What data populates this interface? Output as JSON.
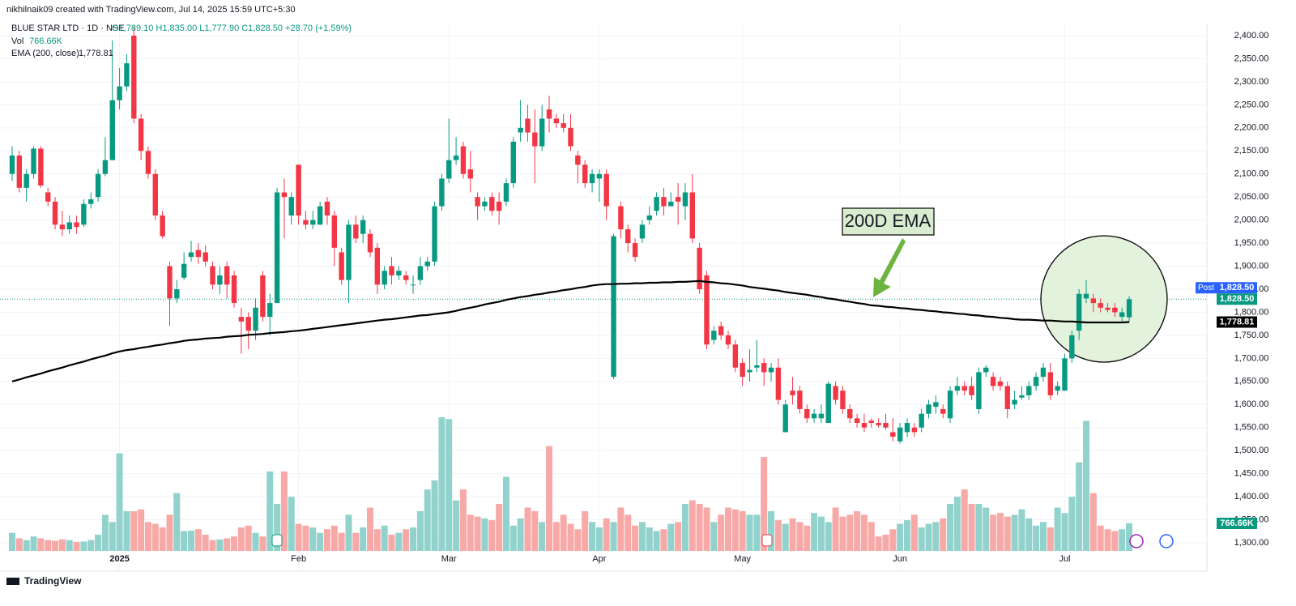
{
  "chart_data": {
    "type": "candlestick",
    "watermark": "nikhilnaik09 created with TradingView.com, Jul 14, 2025 15:59 UTC+5:30",
    "symbol": "BLUE STAR LTD · 1D · NSE",
    "ohlc_text": "O1,789.10 H1,835.00 L1,777.90 C1,828.50 +28.70 (+1.59%)",
    "vol_title": "Vol",
    "vol_value": "766.66K",
    "ema_title": "EMA (200, close)",
    "ema_value": "1,778.81",
    "annotation": "200D EMA",
    "footer": "TradingView",
    "ylim": [
      1300,
      2400
    ],
    "yticks": [
      {
        "value": 1300,
        "label": "1,300.00"
      },
      {
        "value": 1350,
        "label": "1,350.00"
      },
      {
        "value": 1400,
        "label": "1,400.00"
      },
      {
        "value": 1450,
        "label": "1,450.00"
      },
      {
        "value": 1500,
        "label": "1,500.00"
      },
      {
        "value": 1550,
        "label": "1,550.00"
      },
      {
        "value": 1600,
        "label": "1,600.00"
      },
      {
        "value": 1650,
        "label": "1,650.00"
      },
      {
        "value": 1700,
        "label": "1,700.00"
      },
      {
        "value": 1750,
        "label": "1,750.00"
      },
      {
        "value": 1800,
        "label": "1,800.00"
      },
      {
        "value": 1850,
        "label": "1,850.00"
      },
      {
        "value": 1900,
        "label": "1,900.00"
      },
      {
        "value": 1950,
        "label": "1,950.00"
      },
      {
        "value": 2000,
        "label": "2,000.00"
      },
      {
        "value": 2050,
        "label": "2,050.00"
      },
      {
        "value": 2100,
        "label": "2,100.00"
      },
      {
        "value": 2150,
        "label": "2,150.00"
      },
      {
        "value": 2200,
        "label": "2,200.00"
      },
      {
        "value": 2250,
        "label": "2,250.00"
      },
      {
        "value": 2300,
        "label": "2,300.00"
      },
      {
        "value": 2350,
        "label": "2,350.00"
      },
      {
        "value": 2400,
        "label": "2,400.00"
      }
    ],
    "xticks": [
      {
        "value": 15,
        "label": "2025"
      },
      {
        "value": 40,
        "label": "Feb"
      },
      {
        "value": 61,
        "label": "Mar"
      },
      {
        "value": 82,
        "label": "Apr"
      },
      {
        "value": 102,
        "label": "May"
      },
      {
        "value": 124,
        "label": "Jun"
      },
      {
        "value": 147,
        "label": "Jul"
      }
    ],
    "price_labels": [
      {
        "value": 1828.5,
        "label": "1,828.50",
        "tag": "Post",
        "color": "#2962ff"
      },
      {
        "value": 1828.5,
        "label": "1,828.50",
        "color": "#089981"
      },
      {
        "value": 1778.81,
        "label": "1,778.81",
        "color": "#000000"
      }
    ],
    "volume_label": "766.66K",
    "up_color": "#089981",
    "down_color": "#f23645",
    "up_volume_color": "#92d2cc",
    "down_volume_color": "#f7a9a7",
    "ema_color": "#000000",
    "open": [
      2100,
      2140,
      2070,
      2100,
      2155,
      2060,
      2040,
      1990,
      1980,
      1995,
      1990,
      2035,
      2050,
      2100,
      2130,
      2260,
      2290,
      2400,
      2220,
      2150,
      2100,
      2010,
      1900,
      1830,
      1875,
      1920,
      1935,
      1930,
      1900,
      1860,
      1900,
      1880,
      1790,
      1790,
      1760,
      1880,
      1790,
      1820,
      2060,
      2010,
      2120,
      2000,
      1990,
      1990,
      2040,
      2010,
      1930,
      1870,
      1990,
      1970,
      1970,
      1940,
      1860,
      1900,
      1880,
      1880,
      1860,
      1870,
      1900,
      1910,
      2030,
      2090,
      2130,
      2160,
      2110,
      2050,
      2030,
      2050,
      2040,
      2040,
      2080,
      2190,
      2220,
      2190,
      2160,
      2240,
      2220,
      2210,
      2200,
      2140,
      2120,
      2080,
      2090,
      2100,
      1660,
      2030,
      1980,
      1950,
      1960,
      2000,
      2020,
      2050,
      2030,
      2050,
      2030,
      2060,
      1940,
      1880,
      1740,
      1770,
      1750,
      1730,
      1690,
      1670,
      1680,
      1690,
      1670,
      1680,
      1540,
      1630,
      1630,
      1590,
      1570,
      1570,
      1560,
      1640,
      1630,
      1590,
      1570,
      1560,
      1565,
      1560,
      1560,
      1540,
      1520,
      1540,
      1550,
      1550,
      1580,
      1595,
      1590,
      1570,
      1630,
      1640,
      1640,
      1590,
      1670,
      1660,
      1650,
      1640,
      1600,
      1615,
      1620,
      1640,
      1660,
      1670,
      1630,
      1630,
      1700,
      1760,
      1830,
      1830,
      1820,
      1810,
      1810,
      1790,
      1789.1
    ],
    "high": [
      2160,
      2150,
      2110,
      2160,
      2160,
      2070,
      2050,
      2020,
      2010,
      2010,
      2045,
      2060,
      2110,
      2180,
      2390,
      2330,
      2360,
      2420,
      2230,
      2160,
      2110,
      2020,
      1910,
      1870,
      1930,
      1955,
      1950,
      1945,
      1910,
      1900,
      1910,
      1890,
      1810,
      1800,
      1830,
      1890,
      1840,
      2070,
      2090,
      2060,
      2120,
      2020,
      2020,
      2040,
      2050,
      2020,
      1940,
      2000,
      2010,
      2010,
      1980,
      1950,
      1900,
      1920,
      1900,
      1890,
      1880,
      1920,
      1920,
      2040,
      2100,
      2220,
      2180,
      2170,
      2150,
      2060,
      2050,
      2060,
      2060,
      2090,
      2180,
      2260,
      2250,
      2240,
      2250,
      2270,
      2230,
      2230,
      2230,
      2150,
      2130,
      2110,
      2110,
      2110,
      1970,
      2040,
      1990,
      1960,
      2000,
      2030,
      2060,
      2070,
      2060,
      2080,
      2080,
      2100,
      1950,
      1890,
      1770,
      1780,
      1760,
      1740,
      1700,
      1720,
      1740,
      1700,
      1690,
      1700,
      1610,
      1660,
      1640,
      1600,
      1590,
      1600,
      1650,
      1650,
      1640,
      1600,
      1580,
      1580,
      1570,
      1570,
      1580,
      1570,
      1560,
      1570,
      1560,
      1590,
      1610,
      1620,
      1600,
      1640,
      1660,
      1650,
      1660,
      1680,
      1685,
      1670,
      1660,
      1650,
      1630,
      1640,
      1650,
      1670,
      1690,
      1690,
      1650,
      1710,
      1760,
      1850,
      1870,
      1840,
      1830,
      1820,
      1820,
      1810,
      1835
    ],
    "low": [
      2085,
      2060,
      2040,
      2090,
      2070,
      2030,
      1980,
      1965,
      1970,
      1970,
      1985,
      2025,
      2040,
      2095,
      2130,
      2240,
      2280,
      2210,
      2130,
      2090,
      2000,
      1960,
      1770,
      1820,
      1870,
      1910,
      1905,
      1900,
      1850,
      1840,
      1830,
      1810,
      1710,
      1720,
      1740,
      1780,
      1750,
      1820,
      1960,
      1990,
      1990,
      1980,
      1980,
      1990,
      1990,
      1900,
      1860,
      1820,
      1950,
      1950,
      1920,
      1840,
      1850,
      1860,
      1870,
      1860,
      1840,
      1860,
      1890,
      1900,
      2020,
      2080,
      2120,
      2090,
      2060,
      2000,
      2020,
      2010,
      1990,
      2030,
      2070,
      2170,
      2170,
      2080,
      2150,
      2190,
      2200,
      2190,
      2150,
      2080,
      2070,
      2060,
      2040,
      2000,
      1655,
      1960,
      1930,
      1910,
      1950,
      1990,
      2010,
      2010,
      2030,
      1990,
      2000,
      1950,
      1840,
      1720,
      1730,
      1740,
      1720,
      1670,
      1640,
      1650,
      1670,
      1640,
      1650,
      1600,
      1540,
      1600,
      1580,
      1560,
      1560,
      1560,
      1560,
      1600,
      1580,
      1560,
      1550,
      1540,
      1550,
      1550,
      1545,
      1520,
      1515,
      1530,
      1530,
      1540,
      1570,
      1580,
      1570,
      1560,
      1620,
      1620,
      1610,
      1580,
      1660,
      1630,
      1630,
      1570,
      1590,
      1610,
      1610,
      1630,
      1650,
      1610,
      1620,
      1630,
      1690,
      1740,
      1820,
      1800,
      1800,
      1800,
      1790,
      1780,
      1777.9
    ],
    "close": [
      2140,
      2070,
      2100,
      2155,
      2075,
      2040,
      1990,
      1980,
      1995,
      1985,
      2035,
      2045,
      2100,
      2130,
      2260,
      2290,
      2340,
      2220,
      2150,
      2100,
      2010,
      1965,
      1830,
      1850,
      1905,
      1930,
      1920,
      1910,
      1860,
      1880,
      1860,
      1820,
      1780,
      1760,
      1810,
      1790,
      1820,
      2060,
      2050,
      2050,
      2010,
      1990,
      2000,
      2030,
      2010,
      1940,
      1870,
      1990,
      1960,
      2000,
      1930,
      1860,
      1890,
      1880,
      1890,
      1870,
      1860,
      1900,
      1910,
      2030,
      2090,
      2130,
      2140,
      2100,
      2090,
      2030,
      2040,
      2020,
      2020,
      2080,
      2170,
      2200,
      2190,
      2160,
      2220,
      2220,
      2210,
      2200,
      2160,
      2120,
      2080,
      2100,
      2100,
      2030,
      1965,
      1980,
      1950,
      1920,
      1990,
      2010,
      2050,
      2030,
      2040,
      2040,
      2060,
      1960,
      1850,
      1730,
      1760,
      1750,
      1730,
      1680,
      1660,
      1675,
      1685,
      1670,
      1680,
      1610,
      1600,
      1620,
      1590,
      1570,
      1580,
      1580,
      1645,
      1610,
      1590,
      1570,
      1560,
      1550,
      1560,
      1555,
      1550,
      1530,
      1550,
      1560,
      1540,
      1580,
      1600,
      1605,
      1580,
      1630,
      1640,
      1630,
      1620,
      1670,
      1680,
      1640,
      1640,
      1590,
      1610,
      1620,
      1640,
      1660,
      1680,
      1620,
      1640,
      1700,
      1750,
      1840,
      1840,
      1820,
      1810,
      1805,
      1800,
      1800,
      1828.5
    ],
    "volume": [
      500,
      350,
      300,
      400,
      350,
      300,
      280,
      320,
      300,
      250,
      260,
      300,
      450,
      1000,
      800,
      2700,
      1100,
      1100,
      1150,
      800,
      750,
      650,
      1000,
      1600,
      550,
      560,
      600,
      450,
      300,
      320,
      350,
      400,
      650,
      700,
      500,
      400,
      2200,
      1300,
      2200,
      1500,
      750,
      700,
      650,
      500,
      600,
      700,
      500,
      1000,
      500,
      650,
      1200,
      600,
      700,
      450,
      500,
      600,
      650,
      1100,
      1700,
      1950,
      3700,
      3650,
      1400,
      1700,
      1000,
      950,
      900,
      850,
      1300,
      2050,
      700,
      900,
      1200,
      1100,
      800,
      2900,
      800,
      1000,
      750,
      600,
      1100,
      800,
      650,
      900,
      800,
      1200,
      1000,
      700,
      800,
      650,
      550,
      600,
      750,
      800,
      1300,
      1400,
      1300,
      1200,
      800,
      1000,
      1200,
      1150,
      1100,
      1000,
      1000,
      2600,
      1100,
      850,
      750,
      900,
      800,
      700,
      1050,
      950,
      800,
      1200,
      950,
      1000,
      1100,
      1000,
      800,
      400,
      450,
      600,
      750,
      850,
      1000,
      650,
      750,
      800,
      900,
      1300,
      1500,
      1700,
      1300,
      1300,
      1200,
      1000,
      1050,
      950,
      1000,
      1150,
      900,
      700,
      800,
      650,
      1200,
      1050,
      1500,
      2450,
      3600,
      1600,
      700,
      600,
      550,
      600,
      766.66
    ],
    "ema": [
      1650,
      1654,
      1659,
      1663,
      1667,
      1672,
      1676,
      1680,
      1685,
      1689,
      1693,
      1698,
      1702,
      1706,
      1711,
      1715,
      1718,
      1720,
      1723,
      1725,
      1728,
      1730,
      1733,
      1735,
      1738,
      1740,
      1741,
      1743,
      1744,
      1745,
      1747,
      1748,
      1749,
      1751,
      1752,
      1753,
      1755,
      1756,
      1757,
      1759,
      1760,
      1762,
      1764,
      1766,
      1768,
      1770,
      1772,
      1774,
      1776,
      1778,
      1780,
      1782,
      1784,
      1785,
      1787,
      1789,
      1791,
      1793,
      1794,
      1796,
      1798,
      1800,
      1803,
      1807,
      1810,
      1813,
      1817,
      1820,
      1823,
      1827,
      1830,
      1833,
      1835,
      1838,
      1840,
      1843,
      1845,
      1848,
      1850,
      1853,
      1855,
      1858,
      1860,
      1861,
      1861,
      1862,
      1862,
      1863,
      1863,
      1864,
      1864,
      1865,
      1865,
      1866,
      1866,
      1867,
      1868,
      1866,
      1865,
      1863,
      1862,
      1860,
      1858,
      1855,
      1853,
      1851,
      1849,
      1847,
      1844,
      1842,
      1840,
      1838,
      1835,
      1833,
      1830,
      1828,
      1825,
      1823,
      1820,
      1818,
      1815,
      1814,
      1812,
      1811,
      1809,
      1808,
      1806,
      1805,
      1803,
      1802,
      1800,
      1799,
      1797,
      1796,
      1794,
      1793,
      1791,
      1790,
      1788,
      1787,
      1785,
      1784,
      1784,
      1783,
      1782,
      1782,
      1781,
      1780,
      1780,
      1779,
      1778,
      1778,
      1778,
      1778,
      1778,
      1778,
      1778.81
    ]
  }
}
